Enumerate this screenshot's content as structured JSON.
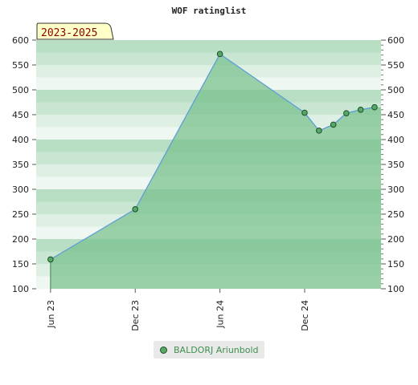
{
  "chart_data": {
    "type": "area",
    "title": "WOF ratinglist",
    "badge": "2023-2025",
    "x_ticks": [
      "Jun 23",
      "Dec 23",
      "Jun 24",
      "Dec 24"
    ],
    "y_ticks": [
      100,
      150,
      200,
      250,
      300,
      350,
      400,
      450,
      500,
      550,
      600
    ],
    "ylim": [
      100,
      600
    ],
    "x_range": [
      "2023-05-01",
      "2025-05-15"
    ],
    "series": [
      {
        "name": "BALDORJ Ariunbold",
        "dates": [
          "2023-06-01",
          "2023-12-01",
          "2024-06-01",
          "2024-12-01",
          "2025-01-01",
          "2025-02-01",
          "2025-03-01",
          "2025-04-01",
          "2025-05-01"
        ],
        "values": [
          159,
          260,
          572,
          454,
          418,
          430,
          453,
          460,
          465
        ]
      }
    ],
    "grid": true,
    "legend_position": "bottom-center",
    "colors": {
      "line": "#5f9ed6",
      "marker": "#58a865",
      "marker_stroke": "#1f4f27",
      "fill": "#78c08c",
      "band_dark": "#b8dec4",
      "band_light": "#eef7f1"
    }
  }
}
